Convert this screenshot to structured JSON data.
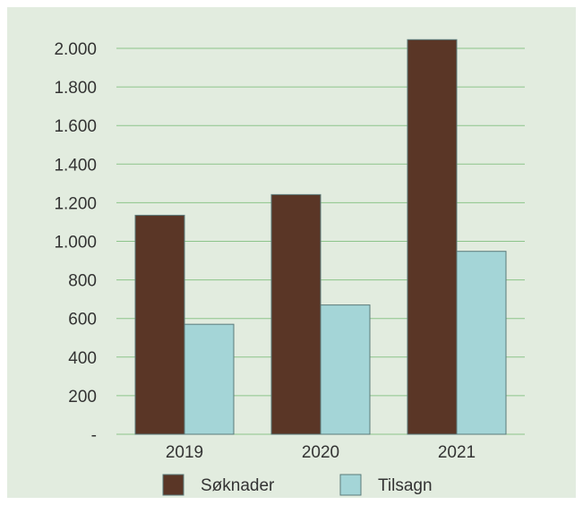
{
  "chart_data": {
    "type": "bar",
    "categories": [
      "2019",
      "2020",
      "2021"
    ],
    "series": [
      {
        "name": "Søknader",
        "values": [
          1135,
          1242,
          2045
        ],
        "color": "#5a3626"
      },
      {
        "name": "Tilsagn",
        "values": [
          570,
          670,
          948
        ],
        "color": "#a4d5d7"
      }
    ],
    "y_ticks": [
      {
        "value": 0,
        "label": "-"
      },
      {
        "value": 200,
        "label": "200"
      },
      {
        "value": 400,
        "label": "400"
      },
      {
        "value": 600,
        "label": "600"
      },
      {
        "value": 800,
        "label": "800"
      },
      {
        "value": 1000,
        "label": "1.000"
      },
      {
        "value": 1200,
        "label": "1.200"
      },
      {
        "value": 1400,
        "label": "1.400"
      },
      {
        "value": 1600,
        "label": "1.600"
      },
      {
        "value": 1800,
        "label": "1.800"
      },
      {
        "value": 2000,
        "label": "2.000"
      }
    ],
    "ylim": [
      0,
      2000
    ],
    "title": "",
    "xlabel": "",
    "ylabel": "",
    "grid": true,
    "legend_position": "bottom",
    "colors": {
      "background": "#e2ecdf",
      "grid": "#8cc48a",
      "bar_border": "#5b7a7a"
    }
  }
}
